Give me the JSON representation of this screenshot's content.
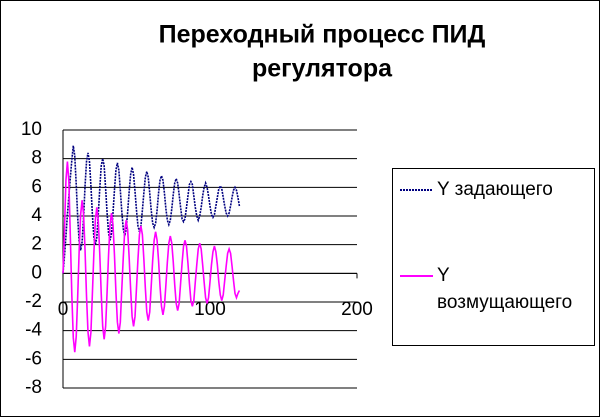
{
  "chart_data": {
    "type": "line",
    "title": "Переходный процесс ПИД регулятора",
    "x": [
      0,
      1,
      2,
      3,
      4,
      5,
      6,
      7,
      8,
      9,
      10,
      11,
      12,
      13,
      14,
      15,
      16,
      17,
      18,
      19,
      20,
      21,
      22,
      23,
      24,
      25,
      26,
      27,
      28,
      29,
      30,
      31,
      32,
      33,
      34,
      35,
      36,
      37,
      38,
      39,
      40,
      41,
      42,
      43,
      44,
      45,
      46,
      47,
      48,
      49,
      50,
      51,
      52,
      53,
      54,
      55,
      56,
      57,
      58,
      59,
      60,
      61,
      62,
      63,
      64,
      65,
      66,
      67,
      68,
      69,
      70,
      71,
      72,
      73,
      74,
      75,
      76,
      77,
      78,
      79,
      80,
      81,
      82,
      83,
      84,
      85,
      86,
      87,
      88,
      89,
      90,
      91,
      92,
      93,
      94,
      95,
      96,
      97,
      98,
      99,
      100,
      101,
      102,
      103,
      104,
      105,
      106,
      107,
      108,
      109,
      110,
      111,
      112,
      113,
      114,
      115,
      116,
      117,
      118,
      119,
      120
    ],
    "series": [
      {
        "name": "Y задающего",
        "color": "#000080",
        "values": [
          0,
          1.2,
          2.6,
          4.1,
          5.4,
          6.7,
          7.9,
          8.9,
          8.2,
          6.2,
          3.9,
          2.2,
          1.6,
          2.2,
          3.9,
          6.1,
          7.8,
          8.4,
          7.8,
          6.1,
          4.1,
          2.5,
          2.0,
          2.5,
          4.1,
          5.9,
          7.5,
          8.0,
          7.5,
          5.9,
          4.2,
          2.8,
          2.3,
          2.8,
          4.2,
          5.8,
          7.2,
          7.7,
          7.2,
          5.8,
          4.3,
          3.1,
          2.6,
          3.1,
          4.3,
          5.7,
          6.9,
          7.4,
          6.9,
          5.7,
          4.4,
          3.3,
          2.9,
          3.3,
          4.4,
          5.6,
          6.7,
          7.1,
          6.7,
          5.6,
          4.4,
          3.5,
          3.2,
          3.5,
          4.4,
          5.6,
          6.5,
          6.8,
          6.5,
          5.6,
          4.5,
          3.7,
          3.4,
          3.7,
          4.5,
          5.5,
          6.3,
          6.6,
          6.3,
          5.5,
          4.6,
          3.8,
          3.6,
          3.8,
          4.6,
          5.4,
          6.2,
          6.4,
          6.2,
          5.4,
          4.6,
          4.0,
          3.7,
          4.0,
          4.6,
          5.4,
          6.0,
          6.3,
          6.0,
          5.4,
          4.7,
          4.1,
          3.9,
          4.1,
          4.7,
          5.3,
          5.9,
          6.1,
          5.9,
          5.3,
          4.7,
          4.2,
          4.0,
          4.2,
          4.7,
          5.3,
          5.8,
          6.0,
          5.8,
          5.3,
          4.7
        ]
      },
      {
        "name": "Y возмущающего",
        "color": "#ff00ff",
        "values": [
          0,
          3.0,
          6.5,
          7.8,
          6.4,
          2.5,
          -1.5,
          -4.5,
          -5.5,
          -4.4,
          -1.6,
          1.6,
          4.1,
          5.1,
          4.1,
          1.6,
          -1.6,
          -4.1,
          -5.1,
          -4.1,
          -1.4,
          1.4,
          3.7,
          4.6,
          3.7,
          1.4,
          -1.4,
          -3.7,
          -4.6,
          -3.7,
          -1.3,
          1.3,
          3.4,
          4.2,
          3.4,
          1.3,
          -1.3,
          -3.4,
          -4.2,
          -3.4,
          -1.1,
          1.1,
          3.0,
          3.7,
          3.0,
          1.1,
          -1.1,
          -3.0,
          -3.7,
          -3.0,
          -1.0,
          1.0,
          2.7,
          3.3,
          2.7,
          1.0,
          -1.0,
          -2.7,
          -3.3,
          -2.7,
          -0.9,
          0.9,
          2.3,
          2.9,
          2.3,
          0.9,
          -0.9,
          -2.3,
          -2.9,
          -2.3,
          -0.8,
          0.8,
          2.1,
          2.6,
          2.1,
          0.8,
          -0.8,
          -2.1,
          -2.6,
          -2.1,
          -0.7,
          0.7,
          1.9,
          2.3,
          1.9,
          0.7,
          -0.7,
          -1.9,
          -2.3,
          -1.9,
          -0.6,
          0.6,
          1.7,
          2.1,
          1.7,
          0.6,
          -0.6,
          -1.7,
          -2.1,
          -1.7,
          -0.6,
          0.6,
          1.5,
          1.9,
          1.5,
          0.6,
          -0.6,
          -1.5,
          -1.9,
          -1.5,
          -0.5,
          0.5,
          1.4,
          1.7,
          1.4,
          0.5,
          -0.5,
          -1.4,
          -1.7,
          -1.4,
          -1.2
        ]
      }
    ],
    "xlim": [
      0,
      200
    ],
    "xticks": [
      0,
      100,
      200
    ],
    "ylim": [
      -8,
      10
    ],
    "yticks": [
      -8,
      -6,
      -4,
      -2,
      0,
      2,
      4,
      6,
      8,
      10
    ],
    "grid": true,
    "legend": "right"
  }
}
